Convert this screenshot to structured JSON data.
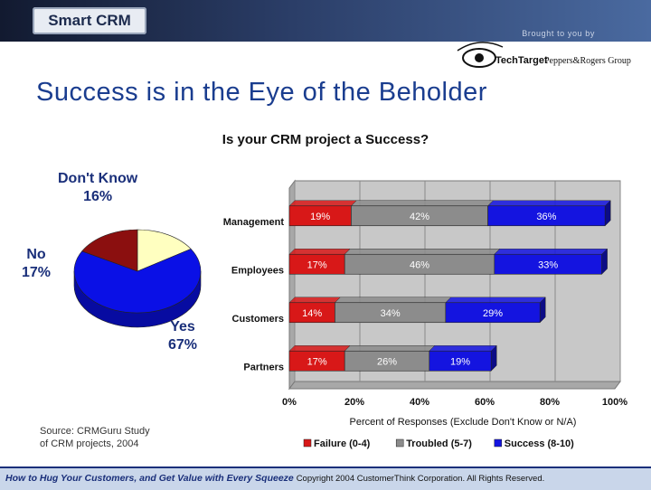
{
  "header": {
    "logo_text": "Smart CRM",
    "brought_by": "Brought to you by",
    "sponsor_1": "TechTarget",
    "sponsor_2": "Peppers&Rogers Group"
  },
  "slide_title": "Success is in the Eye of the Beholder",
  "pie": {
    "title": "Is your CRM project a Success?",
    "slices": [
      {
        "name": "Don't Know",
        "value": 16,
        "label": "16%",
        "color": "#ffffc0"
      },
      {
        "name": "Yes",
        "value": 67,
        "label": "67%",
        "color": "#0a10e6"
      },
      {
        "name": "No",
        "value": 17,
        "label": "17%",
        "color": "#8b0f0f"
      }
    ]
  },
  "chart_data": [
    {
      "type": "pie",
      "title": "Is your CRM project a Success?",
      "categories": [
        "Don't Know",
        "Yes",
        "No"
      ],
      "values": [
        16,
        67,
        17
      ]
    },
    {
      "type": "bar",
      "orientation": "horizontal",
      "stacked": true,
      "categories": [
        "Management",
        "Employees",
        "Customers",
        "Partners"
      ],
      "series": [
        {
          "name": "Failure (0-4)",
          "values": [
            19,
            17,
            14,
            17
          ],
          "color": "#d81818"
        },
        {
          "name": "Troubled (5-7)",
          "values": [
            42,
            46,
            34,
            26
          ],
          "color": "#8c8c8c"
        },
        {
          "name": "Success (8-10)",
          "values": [
            36,
            33,
            29,
            19
          ],
          "color": "#1414e0"
        }
      ],
      "xlabel": "Percent of Responses (Exclude Don't Know or N/A)",
      "xticks": [
        "0%",
        "20%",
        "40%",
        "60%",
        "80%",
        "100%"
      ],
      "xlim": [
        0,
        100
      ],
      "legend": "bottom"
    }
  ],
  "source": {
    "line1": "Source: CRMGuru Study",
    "line2": "of CRM projects, 2004"
  },
  "footer": {
    "emphasis": "How to Hug Your Customers, and Get Value with Every Squeeze",
    "copyright": "Copyright 2004 CustomerThink Corporation. All Rights Reserved."
  }
}
